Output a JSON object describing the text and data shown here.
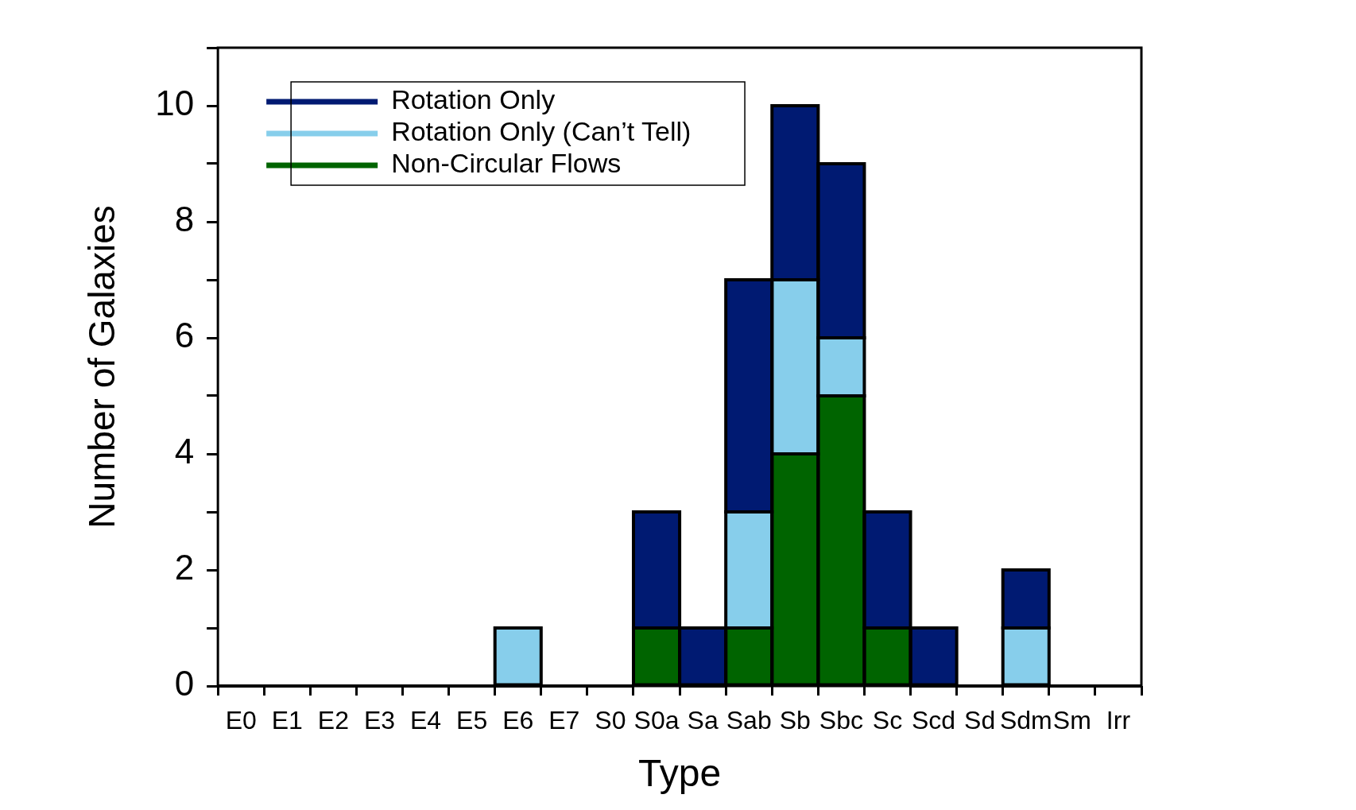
{
  "chart_data": {
    "type": "bar",
    "stacked": true,
    "xlabel": "Type",
    "ylabel": "Number of Galaxies",
    "categories": [
      "E0",
      "E1",
      "E2",
      "E3",
      "E4",
      "E5",
      "E6",
      "E7",
      "S0",
      "S0a",
      "Sa",
      "Sab",
      "Sb",
      "Sbc",
      "Sc",
      "Scd",
      "Sd",
      "Sdm",
      "Sm",
      "Irr"
    ],
    "series": [
      {
        "name": "Non-Circular Flows",
        "color": "#006400",
        "values": [
          0,
          0,
          0,
          0,
          0,
          0,
          0,
          0,
          0,
          1,
          0,
          1,
          4,
          5,
          1,
          0,
          0,
          0,
          0,
          0
        ]
      },
      {
        "name": "Rotation Only (Can’t Tell)",
        "color": "#87ceeb",
        "values": [
          0,
          0,
          0,
          0,
          0,
          0,
          1,
          0,
          0,
          0,
          0,
          2,
          3,
          1,
          0,
          0,
          0,
          1,
          0,
          0
        ]
      },
      {
        "name": "Rotation Only",
        "color": "#001a72",
        "values": [
          0,
          0,
          0,
          0,
          0,
          0,
          0,
          0,
          0,
          2,
          1,
          4,
          3,
          3,
          2,
          1,
          0,
          1,
          0,
          0
        ]
      }
    ],
    "ylim": [
      0,
      11
    ],
    "yticks": [
      0,
      {
        "value": 1,
        "label": null
      },
      2,
      {
        "value": 3,
        "label": null
      },
      4,
      {
        "value": 5,
        "label": null
      },
      6,
      {
        "value": 7,
        "label": null
      },
      8,
      {
        "value": 9,
        "label": null
      },
      10,
      {
        "value": 11,
        "label": null
      }
    ],
    "grid": false,
    "legend": "top left"
  }
}
